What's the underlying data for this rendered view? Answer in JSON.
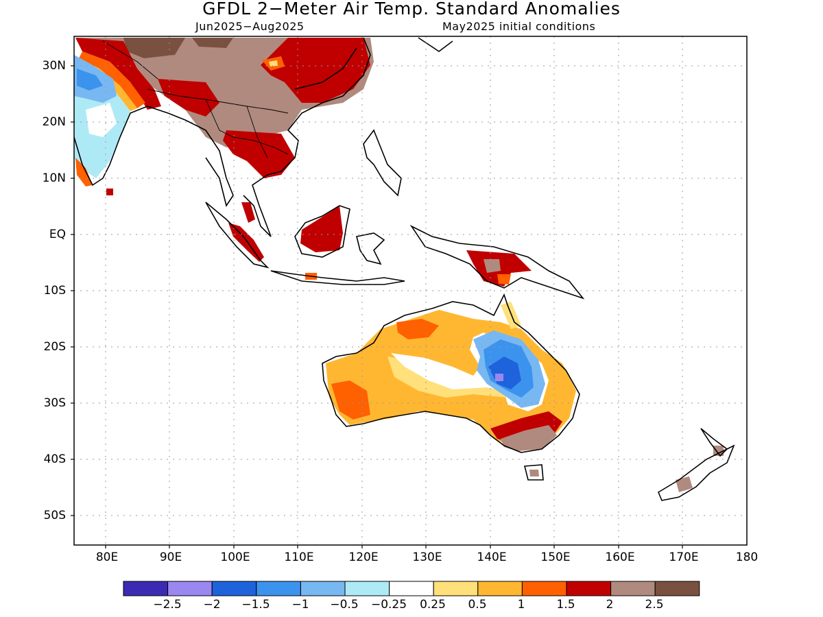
{
  "map": {
    "title": "GFDL 2−Meter Air Temp. Standard Anomalies",
    "period": "Jun2025−Aug2025",
    "initial_conditions": "May2025 initial conditions"
  },
  "lat_labels": [
    "30N",
    "20N",
    "10N",
    "EQ",
    "10S",
    "20S",
    "30S",
    "40S",
    "50S"
  ],
  "lon_labels": [
    "80E",
    "90E",
    "100E",
    "110E",
    "120E",
    "130E",
    "140E",
    "150E",
    "160E",
    "170E",
    "180"
  ],
  "colorbar": {
    "colors": [
      "#3b2bb3",
      "#9b87f0",
      "#1e63dc",
      "#3c93ee",
      "#78b8f2",
      "#aeeaf6",
      "#ffffff",
      "#ffe07a",
      "#ffb732",
      "#ff6000",
      "#c00000",
      "#b08a7e",
      "#7a5040"
    ],
    "labels": [
      "−2.5",
      "−2",
      "−1.5",
      "−1",
      "−0.5",
      "−0.25",
      "0.25",
      "0.5",
      "1",
      "1.5",
      "2",
      "2.5"
    ]
  }
}
